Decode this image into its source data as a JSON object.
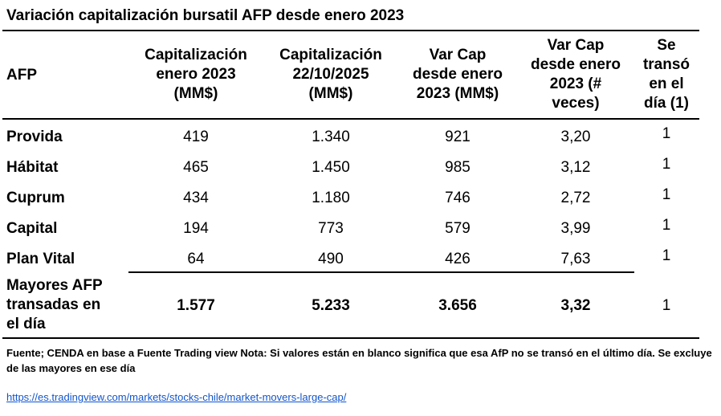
{
  "title": "Variación capitalización bursatil AFP desde enero 2023",
  "headers": {
    "afp": "AFP",
    "cap_2023": "Capitalización\nenero 2023\n(MM$)",
    "cap_2025": "Capitalización\n22/10/2025\n(MM$)",
    "var_mm": "Var Cap\ndesde  enero\n2023 (MM$)",
    "var_veces": "Var Cap\ndesde  enero\n2023 (#\nveces)",
    "transo": "Se\ntransó\nen el\ndía (1)"
  },
  "rows": [
    {
      "afp": "Provida",
      "cap_2023": "419",
      "cap_2025": "1.340",
      "var_mm": "921",
      "var_veces": "3,20",
      "transo": "1"
    },
    {
      "afp": "Hábitat",
      "cap_2023": "465",
      "cap_2025": "1.450",
      "var_mm": "985",
      "var_veces": "3,12",
      "transo": "1"
    },
    {
      "afp": "Cuprum",
      "cap_2023": "434",
      "cap_2025": "1.180",
      "var_mm": "746",
      "var_veces": "2,72",
      "transo": "1"
    },
    {
      "afp": "Capital",
      "cap_2023": "194",
      "cap_2025": "773",
      "var_mm": "579",
      "var_veces": "3,99",
      "transo": "1"
    },
    {
      "afp": "Plan Vital",
      "cap_2023": "64",
      "cap_2025": "490",
      "var_mm": "426",
      "var_veces": "7,63",
      "transo": "1"
    }
  ],
  "total": {
    "afp": "Mayores AFP\ntransadas en\nel día",
    "cap_2023": "1.577",
    "cap_2025": "5.233",
    "var_mm": "3.656",
    "var_veces": "3,32",
    "transo": "1"
  },
  "note": "Fuente; CENDA en base a Fuente Trading view Nota: Si valores están en blanco significa que esa AfP no se transó en el último día. Se excluye de las mayores en ese día",
  "link": "https://es.tradingview.com/markets/stocks-chile/market-movers-large-cap/"
}
